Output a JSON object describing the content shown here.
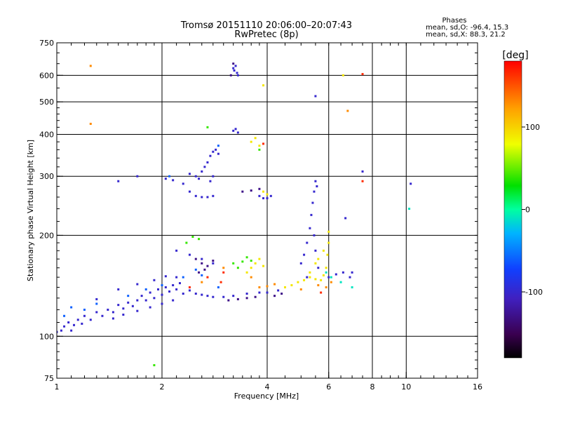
{
  "chart_data": {
    "type": "scatter",
    "title": "Tromsø 20151110 20:06:00–20:07:43",
    "subtitle": "RwPretec (8p)",
    "xlabel": "Frequency [MHz]",
    "ylabel": "Stationary phase Virtual Height [km]",
    "x_scale": "log2",
    "y_scale": "log",
    "xlim": [
      1,
      16
    ],
    "ylim": [
      75,
      750
    ],
    "x_ticks": [
      1,
      2,
      4,
      6,
      8,
      10,
      16
    ],
    "x_gridlines": [
      2,
      4,
      6,
      8,
      10
    ],
    "y_ticks": [
      75,
      100,
      200,
      300,
      400,
      500,
      600,
      750
    ],
    "y_gridlines": [
      100,
      200,
      300,
      400,
      500,
      600
    ],
    "grid": true,
    "stats": {
      "heading": "Phases",
      "line_o": "mean, sd,O: -96.4, 15.3",
      "line_x": "mean, sd,X:  88.3, 21.2"
    },
    "colorbar": {
      "label": "[deg]",
      "ticks": [
        100,
        0,
        -100
      ],
      "range": [
        -180,
        180
      ],
      "placement": "right"
    },
    "series": [
      {
        "phase": -100,
        "points": [
          [
            1.0,
            103
          ],
          [
            1.03,
            104
          ],
          [
            1.05,
            107
          ],
          [
            1.08,
            110
          ],
          [
            1.1,
            104
          ],
          [
            1.12,
            108
          ],
          [
            1.15,
            112
          ],
          [
            1.18,
            109
          ],
          [
            1.2,
            115
          ],
          [
            1.25,
            112
          ],
          [
            1.3,
            118
          ],
          [
            1.35,
            115
          ],
          [
            1.4,
            120
          ],
          [
            1.45,
            118
          ],
          [
            1.5,
            124
          ],
          [
            1.55,
            121
          ],
          [
            1.6,
            126
          ],
          [
            1.65,
            123
          ],
          [
            1.7,
            128
          ],
          [
            1.75,
            132
          ],
          [
            1.8,
            128
          ],
          [
            1.85,
            135
          ],
          [
            1.9,
            130
          ],
          [
            1.95,
            138
          ],
          [
            2.0,
            133
          ],
          [
            2.05,
            140
          ],
          [
            2.1,
            136
          ],
          [
            2.15,
            142
          ],
          [
            2.2,
            138
          ],
          [
            2.25,
            144
          ],
          [
            2.3,
            134
          ],
          [
            2.4,
            137
          ],
          [
            2.5,
            134
          ],
          [
            2.6,
            133
          ],
          [
            2.7,
            132
          ],
          [
            2.8,
            131
          ],
          [
            3.0,
            131
          ],
          [
            3.2,
            132
          ],
          [
            3.5,
            134
          ],
          [
            3.8,
            135
          ],
          [
            4.0,
            135
          ],
          [
            4.3,
            137
          ],
          [
            1.45,
            113
          ],
          [
            1.55,
            116
          ],
          [
            1.7,
            119
          ],
          [
            1.85,
            122
          ],
          [
            2.0,
            125
          ],
          [
            2.15,
            128
          ],
          [
            1.3,
            129
          ],
          [
            1.5,
            138
          ],
          [
            1.7,
            143
          ],
          [
            1.9,
            147
          ],
          [
            2.05,
            151
          ],
          [
            2.2,
            150
          ],
          [
            2.05,
            295
          ],
          [
            2.15,
            292
          ],
          [
            2.3,
            285
          ],
          [
            2.4,
            270
          ],
          [
            2.5,
            262
          ],
          [
            2.6,
            260
          ],
          [
            2.7,
            260
          ],
          [
            2.8,
            262
          ],
          [
            2.4,
            305
          ],
          [
            2.5,
            300
          ],
          [
            2.55,
            295
          ],
          [
            2.6,
            310
          ],
          [
            2.65,
            320
          ],
          [
            2.7,
            330
          ],
          [
            2.75,
            345
          ],
          [
            2.8,
            355
          ],
          [
            2.85,
            360
          ],
          [
            2.9,
            350
          ],
          [
            2.75,
            290
          ],
          [
            2.8,
            300
          ],
          [
            3.2,
            630
          ],
          [
            3.22,
            620
          ],
          [
            3.25,
            640
          ],
          [
            3.28,
            610
          ],
          [
            3.3,
            600
          ],
          [
            3.2,
            410
          ],
          [
            3.25,
            415
          ],
          [
            3.3,
            405
          ],
          [
            3.8,
            262
          ],
          [
            3.9,
            258
          ],
          [
            4.0,
            258
          ],
          [
            4.1,
            262
          ],
          [
            5.0,
            165
          ],
          [
            5.1,
            175
          ],
          [
            5.2,
            190
          ],
          [
            5.3,
            210
          ],
          [
            5.35,
            230
          ],
          [
            5.4,
            250
          ],
          [
            5.45,
            270
          ],
          [
            5.5,
            290
          ],
          [
            5.55,
            280
          ],
          [
            5.45,
            200
          ],
          [
            5.5,
            180
          ],
          [
            5.6,
            160
          ],
          [
            5.2,
            150
          ],
          [
            6.0,
            150
          ],
          [
            6.3,
            153
          ],
          [
            6.6,
            155
          ],
          [
            6.9,
            150
          ],
          [
            7.0,
            155
          ],
          [
            2.2,
            180
          ],
          [
            2.4,
            175
          ],
          [
            2.6,
            170
          ],
          [
            2.8,
            165
          ],
          [
            5.5,
            520
          ],
          [
            1.7,
            300
          ],
          [
            1.5,
            290
          ],
          [
            6.7,
            225
          ],
          [
            7.5,
            310
          ],
          [
            10.3,
            285
          ]
        ]
      },
      {
        "phase": -130,
        "points": [
          [
            2.5,
            170
          ],
          [
            2.6,
            165
          ],
          [
            2.7,
            162
          ],
          [
            2.8,
            168
          ],
          [
            2.55,
            155
          ],
          [
            2.65,
            158
          ],
          [
            3.1,
            128
          ],
          [
            3.3,
            129
          ],
          [
            3.5,
            130
          ],
          [
            3.7,
            131
          ],
          [
            4.2,
            132
          ],
          [
            4.4,
            134
          ],
          [
            3.4,
            270
          ],
          [
            3.6,
            272
          ],
          [
            3.8,
            275
          ],
          [
            3.2,
            650
          ],
          [
            3.15,
            600
          ]
        ]
      },
      {
        "phase": -60,
        "points": [
          [
            1.05,
            115
          ],
          [
            1.1,
            122
          ],
          [
            1.2,
            120
          ],
          [
            1.3,
            125
          ],
          [
            1.6,
            132
          ],
          [
            1.8,
            138
          ],
          [
            2.0,
            142
          ],
          [
            2.3,
            150
          ],
          [
            2.5,
            158
          ],
          [
            2.6,
            152
          ],
          [
            2.9,
            140
          ],
          [
            2.1,
            300
          ],
          [
            2.9,
            370
          ]
        ]
      },
      {
        "phase": -10,
        "points": [
          [
            5.9,
            155
          ],
          [
            6.1,
            150
          ],
          [
            6.5,
            145
          ],
          [
            7.0,
            140
          ],
          [
            10.2,
            240
          ]
        ]
      },
      {
        "phase": 40,
        "points": [
          [
            2.45,
            198
          ],
          [
            2.55,
            195
          ],
          [
            2.35,
            190
          ],
          [
            3.4,
            167
          ],
          [
            3.5,
            172
          ],
          [
            3.6,
            168
          ],
          [
            3.3,
            160
          ],
          [
            3.2,
            165
          ],
          [
            3.8,
            360
          ],
          [
            1.9,
            82
          ],
          [
            2.7,
            420
          ]
        ]
      },
      {
        "phase": 90,
        "points": [
          [
            3.6,
            160
          ],
          [
            3.7,
            165
          ],
          [
            3.8,
            170
          ],
          [
            3.9,
            162
          ],
          [
            3.5,
            155
          ],
          [
            4.5,
            140
          ],
          [
            4.7,
            142
          ],
          [
            4.9,
            145
          ],
          [
            5.1,
            147
          ],
          [
            5.3,
            150
          ],
          [
            5.5,
            148
          ],
          [
            5.7,
            147
          ],
          [
            5.8,
            152
          ],
          [
            5.9,
            160
          ],
          [
            5.95,
            175
          ],
          [
            6.0,
            190
          ],
          [
            6.0,
            205
          ],
          [
            5.8,
            180
          ],
          [
            5.6,
            170
          ],
          [
            5.3,
            155
          ],
          [
            5.5,
            165
          ],
          [
            3.6,
            380
          ],
          [
            3.7,
            390
          ],
          [
            3.8,
            370
          ],
          [
            3.9,
            270
          ],
          [
            4.0,
            265
          ],
          [
            6.6,
            600
          ],
          [
            3.9,
            560
          ]
        ]
      },
      {
        "phase": 130,
        "points": [
          [
            3.8,
            140
          ],
          [
            4.0,
            141
          ],
          [
            4.2,
            143
          ],
          [
            5.0,
            138
          ],
          [
            5.6,
            142
          ],
          [
            5.9,
            140
          ],
          [
            6.1,
            145
          ],
          [
            3.6,
            150
          ],
          [
            3.0,
            160
          ],
          [
            2.6,
            145
          ],
          [
            1.25,
            640
          ],
          [
            1.25,
            430
          ],
          [
            6.8,
            470
          ]
        ]
      },
      {
        "phase": 165,
        "points": [
          [
            2.4,
            140
          ],
          [
            2.7,
            150
          ],
          [
            2.95,
            145
          ],
          [
            3.0,
            155
          ],
          [
            5.7,
            135
          ],
          [
            7.5,
            605
          ],
          [
            7.5,
            290
          ],
          [
            3.9,
            375
          ]
        ]
      }
    ]
  }
}
